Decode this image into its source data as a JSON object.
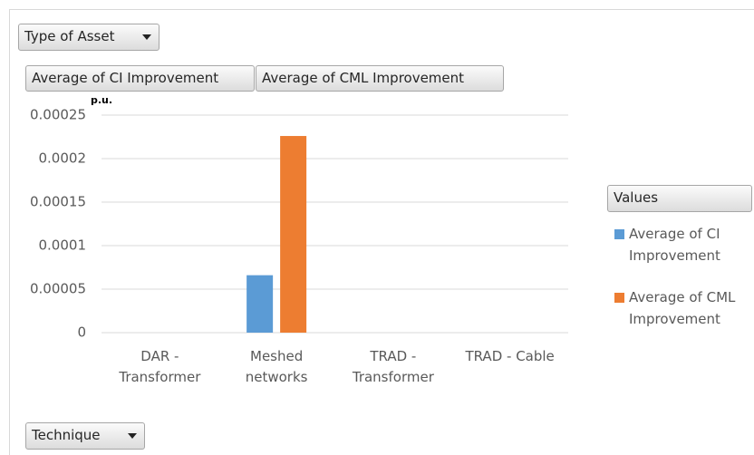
{
  "chart_data": {
    "type": "bar",
    "filter_field": "Type of Asset",
    "axis_field": "Technique",
    "legend_title": "Values",
    "y_unit": "p.u.",
    "categories": [
      "DAR - Transformer",
      "Meshed networks",
      "TRAD - Transformer",
      "TRAD - Cable"
    ],
    "series": [
      {
        "name": "Average of CI Improvement",
        "color": "#5b9bd5",
        "values": [
          null,
          6.6e-05,
          null,
          null
        ]
      },
      {
        "name": "Average of CML Improvement",
        "color": "#ed7d31",
        "values": [
          null,
          0.000226,
          null,
          null
        ]
      }
    ],
    "ylim": [
      0,
      0.00025
    ],
    "yticks": [
      0,
      5e-05,
      0.0001,
      0.00015,
      0.0002,
      0.00025
    ],
    "grid": true,
    "legend": "right"
  }
}
